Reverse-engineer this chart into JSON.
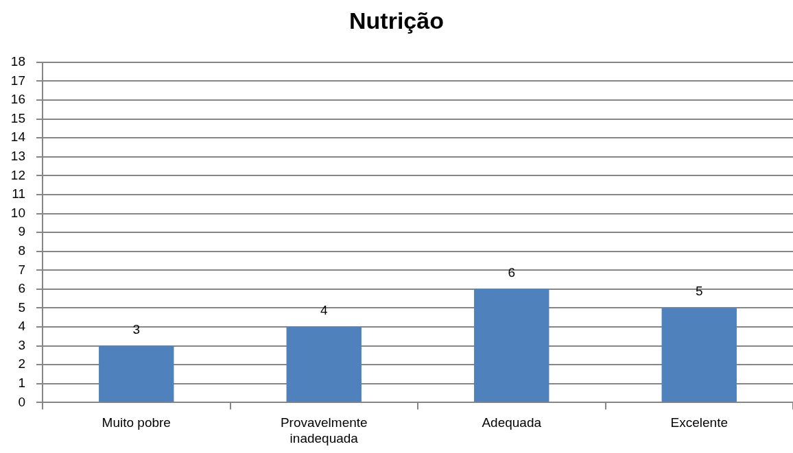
{
  "chart_data": {
    "type": "bar",
    "title": "Nutrição",
    "categories": [
      "Muito pobre",
      "Provavelmente inadequada",
      "Adequada",
      "Excelente"
    ],
    "values": [
      3,
      4,
      6,
      5
    ],
    "color": "#4f81bd",
    "ylim": [
      0,
      18
    ],
    "yticks": [
      0,
      1,
      2,
      3,
      4,
      5,
      6,
      7,
      8,
      9,
      10,
      11,
      12,
      13,
      14,
      15,
      16,
      17,
      18
    ],
    "grid": "y",
    "data_labels": true
  }
}
